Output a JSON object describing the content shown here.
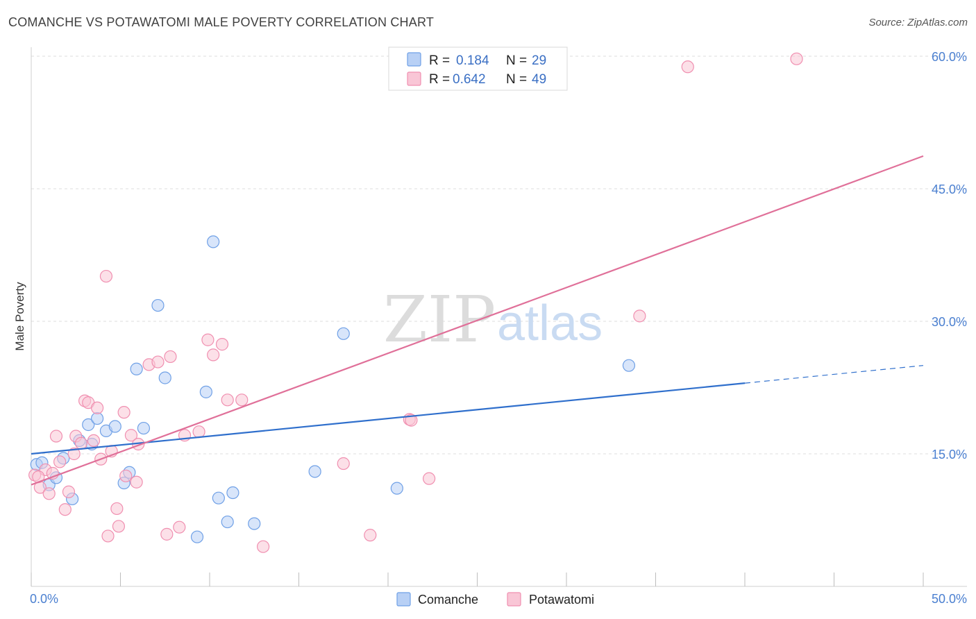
{
  "title": "COMANCHE VS POTAWATOMI MALE POVERTY CORRELATION CHART",
  "source": "Source: ZipAtlas.com",
  "watermark": {
    "zip": "ZIP",
    "atlas": "atlas"
  },
  "legend": {
    "rows": [
      {
        "r_label": "R =",
        "r_value": "0.184",
        "n_label": "N =",
        "n_value": "29",
        "color": "#6fa0e6",
        "fill": "#b8d0f5"
      },
      {
        "r_label": "R =",
        "r_value": "0.642",
        "n_label": "N =",
        "n_value": "49",
        "color": "#f08fb0",
        "fill": "#f9c6d6"
      }
    ]
  },
  "bottom_legend": [
    {
      "label": "Comanche",
      "color": "#6fa0e6",
      "fill": "#b8d0f5"
    },
    {
      "label": "Potawatomi",
      "color": "#f08fb0",
      "fill": "#f9c6d6"
    }
  ],
  "chart_data": {
    "type": "scatter",
    "title": "COMANCHE VS POTAWATOMI MALE POVERTY CORRELATION CHART",
    "xlabel": "",
    "ylabel": "Male Poverty",
    "xlim": [
      0,
      50
    ],
    "ylim": [
      0,
      60
    ],
    "x_tick_labels": [
      "0.0%",
      "50.0%"
    ],
    "y_ticks": [
      15,
      30,
      45,
      60
    ],
    "y_tick_labels": [
      "15.0%",
      "30.0%",
      "45.0%",
      "60.0%"
    ],
    "grid": true,
    "series": [
      {
        "name": "Comanche",
        "color": "#6fa0e6",
        "fill": "#b8d0f5",
        "line_color": "#2f6fcc",
        "trend": {
          "x0": 0,
          "y0": 15.0,
          "x1": 40,
          "y1": 23.0,
          "dash_to_x": 50,
          "dash_to_y": 25.0
        },
        "points": [
          [
            0.3,
            13.8
          ],
          [
            0.6,
            14.0
          ],
          [
            1.0,
            11.5
          ],
          [
            1.4,
            12.3
          ],
          [
            1.8,
            14.5
          ],
          [
            2.3,
            9.9
          ],
          [
            2.7,
            16.5
          ],
          [
            3.2,
            18.3
          ],
          [
            3.4,
            16.1
          ],
          [
            3.7,
            19.0
          ],
          [
            4.2,
            17.6
          ],
          [
            4.7,
            18.1
          ],
          [
            5.2,
            11.7
          ],
          [
            5.5,
            12.9
          ],
          [
            5.9,
            24.6
          ],
          [
            6.3,
            17.9
          ],
          [
            7.1,
            31.8
          ],
          [
            7.5,
            23.6
          ],
          [
            9.3,
            5.6
          ],
          [
            9.8,
            22.0
          ],
          [
            10.2,
            39.0
          ],
          [
            10.5,
            10.0
          ],
          [
            11.0,
            7.3
          ],
          [
            11.3,
            10.6
          ],
          [
            12.5,
            7.1
          ],
          [
            15.9,
            13.0
          ],
          [
            17.5,
            28.6
          ],
          [
            20.5,
            11.1
          ],
          [
            33.5,
            25.0
          ]
        ]
      },
      {
        "name": "Potawatomi",
        "color": "#f08fb0",
        "fill": "#f9c6d6",
        "line_color": "#e07099",
        "trend": {
          "x0": 0,
          "y0": 11.5,
          "x1": 50,
          "y1": 48.7
        },
        "points": [
          [
            0.2,
            12.6
          ],
          [
            0.5,
            11.2
          ],
          [
            0.8,
            13.2
          ],
          [
            1.0,
            10.5
          ],
          [
            1.2,
            12.8
          ],
          [
            1.4,
            17.0
          ],
          [
            1.6,
            14.1
          ],
          [
            1.9,
            8.7
          ],
          [
            2.1,
            10.7
          ],
          [
            2.4,
            15.0
          ],
          [
            2.5,
            17.0
          ],
          [
            2.8,
            16.2
          ],
          [
            3.0,
            21.0
          ],
          [
            3.2,
            20.8
          ],
          [
            3.5,
            16.5
          ],
          [
            3.7,
            20.2
          ],
          [
            3.9,
            14.4
          ],
          [
            4.2,
            35.1
          ],
          [
            4.3,
            5.7
          ],
          [
            4.5,
            15.3
          ],
          [
            4.8,
            8.8
          ],
          [
            4.9,
            6.8
          ],
          [
            5.2,
            19.7
          ],
          [
            5.3,
            12.5
          ],
          [
            5.6,
            17.1
          ],
          [
            5.9,
            11.8
          ],
          [
            6.0,
            16.1
          ],
          [
            6.6,
            25.1
          ],
          [
            7.1,
            25.4
          ],
          [
            7.6,
            5.9
          ],
          [
            7.8,
            26.0
          ],
          [
            8.3,
            6.7
          ],
          [
            8.6,
            17.1
          ],
          [
            9.4,
            17.5
          ],
          [
            9.9,
            27.9
          ],
          [
            10.2,
            26.2
          ],
          [
            10.7,
            27.4
          ],
          [
            11.0,
            21.1
          ],
          [
            11.8,
            21.1
          ],
          [
            13.0,
            4.5
          ],
          [
            17.5,
            13.9
          ],
          [
            19.0,
            5.8
          ],
          [
            21.2,
            18.9
          ],
          [
            21.3,
            18.8
          ],
          [
            22.3,
            12.2
          ],
          [
            34.1,
            30.6
          ],
          [
            36.8,
            58.8
          ],
          [
            42.9,
            59.7
          ],
          [
            0.4,
            12.4
          ]
        ]
      }
    ]
  }
}
